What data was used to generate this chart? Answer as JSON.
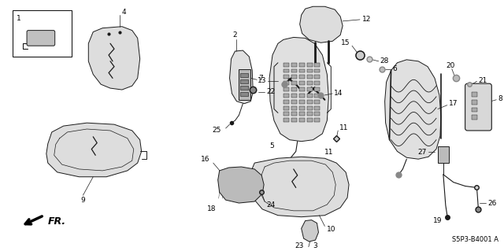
{
  "background_color": "#ffffff",
  "diagram_code": "S5P3-B4001 A",
  "fig_width": 6.4,
  "fig_height": 3.19,
  "dpi": 100,
  "line_color": "#1a1a1a",
  "fill_light": "#e8e8e8",
  "fill_mid": "#d0d0d0",
  "fill_dark": "#b0b0b0"
}
